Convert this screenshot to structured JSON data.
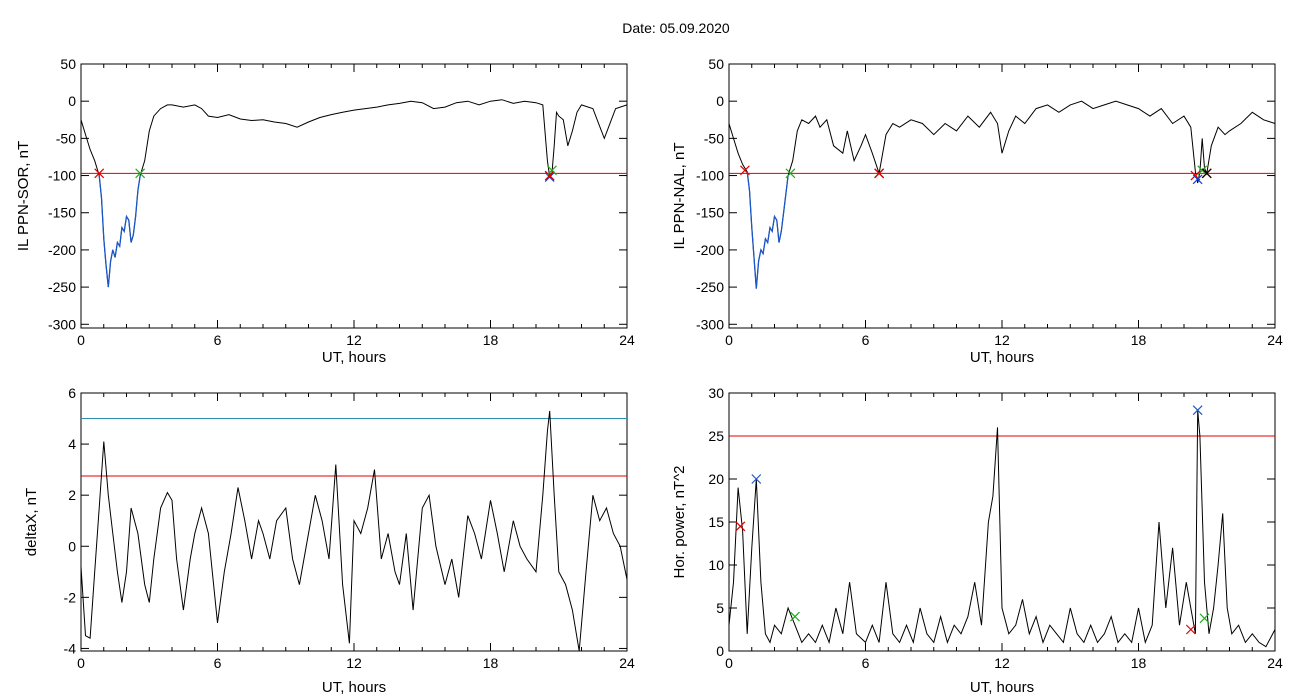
{
  "figure": {
    "title": "Date:  05.09.2020"
  },
  "chart_data": [
    {
      "id": "ppn-sor",
      "type": "line",
      "ylabel": "IL PPN-SOR, nT",
      "xlabel": "UT, hours",
      "xlim": [
        0,
        24
      ],
      "ylim": [
        -305,
        50
      ],
      "xticks": [
        "0",
        "6",
        "12",
        "18",
        "24"
      ],
      "yticks": [
        "50",
        "0",
        "-50",
        "-100",
        "-150",
        "-200",
        "-250",
        "-300"
      ],
      "threshold": {
        "value": -97,
        "color": "#e00000"
      },
      "highlight": {
        "x0": 0.8,
        "x1": 2.6,
        "color": "#1a57c8"
      },
      "series": [
        {
          "color": "#000000",
          "x": [
            0,
            0.2,
            0.4,
            0.6,
            0.8,
            0.9,
            1.0,
            1.1,
            1.2,
            1.3,
            1.4,
            1.5,
            1.6,
            1.7,
            1.8,
            1.9,
            2.0,
            2.1,
            2.2,
            2.3,
            2.4,
            2.5,
            2.6,
            2.8,
            3.0,
            3.2,
            3.5,
            3.8,
            4.0,
            4.5,
            5.0,
            5.3,
            5.6,
            6.0,
            6.5,
            7.0,
            7.5,
            8.0,
            8.5,
            9.0,
            9.5,
            10.0,
            10.5,
            11.0,
            11.5,
            12.0,
            12.5,
            13.0,
            13.5,
            14.0,
            14.5,
            15.0,
            15.5,
            16.0,
            16.5,
            17.0,
            17.5,
            18.0,
            18.5,
            19.0,
            19.5,
            20.0,
            20.3,
            20.5,
            20.6,
            20.7,
            20.8,
            20.9,
            21.0,
            21.2,
            21.4,
            21.6,
            21.8,
            22.0,
            22.5,
            23.0,
            23.5,
            24.0
          ],
          "y": [
            -25,
            -45,
            -65,
            -80,
            -100,
            -130,
            -185,
            -220,
            -250,
            -215,
            -200,
            -210,
            -190,
            -195,
            -170,
            -175,
            -155,
            -160,
            -190,
            -180,
            -155,
            -120,
            -100,
            -80,
            -40,
            -20,
            -10,
            -5,
            -5,
            -8,
            -5,
            -10,
            -20,
            -22,
            -18,
            -24,
            -26,
            -25,
            -28,
            -30,
            -35,
            -28,
            -22,
            -18,
            -15,
            -12,
            -10,
            -8,
            -5,
            -3,
            0,
            -2,
            -10,
            -8,
            -2,
            0,
            -5,
            0,
            2,
            -3,
            0,
            -2,
            -5,
            -80,
            -102,
            -98,
            -60,
            -15,
            -20,
            -25,
            -60,
            -40,
            -15,
            -5,
            -10,
            -50,
            -10,
            -5
          ]
        }
      ],
      "markers": [
        {
          "x": 0.8,
          "y": -97,
          "color": "#e00000"
        },
        {
          "x": 2.6,
          "y": -97,
          "color": "#22aa22"
        },
        {
          "x": 20.6,
          "y": -102,
          "color": "#1a3fd0"
        },
        {
          "x": 20.6,
          "y": -100,
          "color": "#e00000"
        },
        {
          "x": 20.7,
          "y": -93,
          "color": "#22aa22"
        }
      ]
    },
    {
      "id": "ppn-nal",
      "type": "line",
      "ylabel": "IL PPN-NAL, nT",
      "xlabel": "UT, hours",
      "xlim": [
        0,
        24
      ],
      "ylim": [
        -305,
        50
      ],
      "xticks": [
        "0",
        "6",
        "12",
        "18",
        "24"
      ],
      "yticks": [
        "50",
        "0",
        "-50",
        "-100",
        "-150",
        "-200",
        "-250",
        "-300"
      ],
      "threshold": {
        "value": -97,
        "color": "#e00000"
      },
      "highlight": {
        "x0": 0.7,
        "x1": 2.7,
        "color": "#1a57c8"
      },
      "series": [
        {
          "color": "#000000",
          "x": [
            0,
            0.2,
            0.4,
            0.6,
            0.8,
            0.9,
            1.0,
            1.1,
            1.2,
            1.3,
            1.4,
            1.5,
            1.6,
            1.7,
            1.8,
            1.9,
            2.0,
            2.1,
            2.2,
            2.3,
            2.4,
            2.6,
            2.8,
            3.0,
            3.2,
            3.5,
            3.8,
            4.0,
            4.3,
            4.6,
            5.0,
            5.2,
            5.5,
            5.8,
            6.0,
            6.3,
            6.6,
            6.9,
            7.2,
            7.5,
            8.0,
            8.5,
            9.0,
            9.5,
            10.0,
            10.5,
            11.0,
            11.5,
            11.8,
            12.0,
            12.3,
            12.6,
            13.0,
            13.5,
            14.0,
            14.5,
            15.0,
            15.5,
            16.0,
            16.5,
            17.0,
            17.5,
            18.0,
            18.5,
            19.0,
            19.5,
            20.0,
            20.3,
            20.5,
            20.6,
            20.7,
            20.8,
            20.9,
            21.0,
            21.2,
            21.5,
            21.8,
            22.0,
            22.5,
            23.0,
            23.5,
            24.0
          ],
          "y": [
            -30,
            -50,
            -70,
            -85,
            -95,
            -120,
            -170,
            -210,
            -252,
            -215,
            -200,
            -205,
            -185,
            -190,
            -170,
            -175,
            -155,
            -160,
            -190,
            -175,
            -150,
            -100,
            -80,
            -40,
            -25,
            -30,
            -20,
            -35,
            -25,
            -60,
            -70,
            -40,
            -80,
            -60,
            -45,
            -70,
            -97,
            -45,
            -30,
            -35,
            -25,
            -30,
            -45,
            -30,
            -40,
            -20,
            -35,
            -15,
            -30,
            -70,
            -40,
            -20,
            -30,
            -10,
            -5,
            -15,
            -5,
            0,
            -10,
            -5,
            0,
            -5,
            -10,
            -20,
            -10,
            -30,
            -20,
            -35,
            -95,
            -110,
            -95,
            -50,
            -90,
            -97,
            -60,
            -35,
            -45,
            -40,
            -30,
            -15,
            -25,
            -30
          ]
        }
      ],
      "markers": [
        {
          "x": 0.7,
          "y": -93,
          "color": "#e00000"
        },
        {
          "x": 2.7,
          "y": -97,
          "color": "#22aa22"
        },
        {
          "x": 6.6,
          "y": -97,
          "color": "#000000"
        },
        {
          "x": 6.6,
          "y": -97,
          "color": "#e00000"
        },
        {
          "x": 20.5,
          "y": -100,
          "color": "#e00000"
        },
        {
          "x": 20.6,
          "y": -105,
          "color": "#1a3fd0"
        },
        {
          "x": 20.8,
          "y": -93,
          "color": "#22aa22"
        },
        {
          "x": 21.0,
          "y": -97,
          "color": "#e00000"
        },
        {
          "x": 21.0,
          "y": -97,
          "color": "#000000"
        }
      ]
    },
    {
      "id": "deltax",
      "type": "line",
      "ylabel": "deltaX, nT",
      "xlabel": "UT, hours",
      "xlim": [
        0,
        24
      ],
      "ylim": [
        -4.1,
        6
      ],
      "xticks": [
        "0",
        "6",
        "12",
        "18",
        "24"
      ],
      "yticks": [
        "6",
        "4",
        "2",
        "0",
        "-2",
        "-4"
      ],
      "hlines": [
        {
          "value": 5.0,
          "color": "#2a8fb0"
        },
        {
          "value": 2.75,
          "color": "#e00000"
        }
      ],
      "series": [
        {
          "color": "#000000",
          "x": [
            0,
            0.2,
            0.4,
            0.6,
            0.8,
            1.0,
            1.2,
            1.4,
            1.6,
            1.8,
            2.0,
            2.2,
            2.5,
            2.8,
            3.0,
            3.2,
            3.5,
            3.8,
            4.0,
            4.2,
            4.5,
            4.8,
            5.0,
            5.3,
            5.6,
            6.0,
            6.3,
            6.6,
            6.9,
            7.2,
            7.5,
            7.8,
            8.0,
            8.3,
            8.6,
            9.0,
            9.3,
            9.6,
            10.0,
            10.3,
            10.6,
            10.9,
            11.2,
            11.5,
            11.8,
            12.0,
            12.3,
            12.6,
            12.9,
            13.2,
            13.5,
            13.8,
            14.0,
            14.3,
            14.6,
            15.0,
            15.3,
            15.6,
            16.0,
            16.3,
            16.6,
            17.0,
            17.3,
            17.6,
            18.0,
            18.3,
            18.6,
            19.0,
            19.3,
            19.6,
            20.0,
            20.3,
            20.5,
            20.6,
            20.8,
            21.0,
            21.3,
            21.6,
            21.9,
            22.2,
            22.5,
            22.8,
            23.1,
            23.4,
            23.7,
            24.0
          ],
          "y": [
            -0.8,
            -3.5,
            -3.6,
            -1.0,
            1.5,
            4.1,
            2.0,
            0.5,
            -1.0,
            -2.2,
            -1.0,
            1.5,
            0.5,
            -1.5,
            -2.2,
            -0.5,
            1.5,
            2.1,
            1.8,
            -0.5,
            -2.5,
            -0.5,
            0.5,
            1.5,
            0.5,
            -3.0,
            -1.0,
            0.5,
            2.3,
            1.0,
            -0.5,
            1.0,
            0.5,
            -0.5,
            1.0,
            1.5,
            -0.5,
            -1.5,
            0.5,
            2.0,
            1.0,
            -0.5,
            3.2,
            -1.5,
            -3.8,
            1.0,
            0.5,
            1.5,
            3.0,
            -0.5,
            0.5,
            -1.0,
            -1.5,
            0.5,
            -2.5,
            1.5,
            2.0,
            0.0,
            -1.5,
            -0.5,
            -2.0,
            1.2,
            0.5,
            -0.5,
            1.8,
            0.5,
            -1.0,
            1.0,
            0.0,
            -0.5,
            -1.0,
            2.0,
            4.5,
            5.3,
            2.0,
            -1.0,
            -1.5,
            -2.5,
            -4.1,
            -1.0,
            2.0,
            1.0,
            1.5,
            0.5,
            0.0,
            -1.3
          ]
        }
      ]
    },
    {
      "id": "hor-power",
      "type": "line",
      "ylabel": "Hor. power, nT^2",
      "xlabel": "UT, hours",
      "xlim": [
        0,
        24
      ],
      "ylim": [
        0,
        30
      ],
      "xticks": [
        "0",
        "6",
        "12",
        "18",
        "24"
      ],
      "yticks": [
        "30",
        "25",
        "20",
        "15",
        "10",
        "5",
        "0"
      ],
      "threshold": {
        "value": 25,
        "color": "#e00000"
      },
      "series": [
        {
          "color": "#000000",
          "x": [
            0,
            0.2,
            0.4,
            0.6,
            0.8,
            1.0,
            1.2,
            1.4,
            1.6,
            1.8,
            2.0,
            2.3,
            2.6,
            2.9,
            3.2,
            3.5,
            3.8,
            4.1,
            4.4,
            4.7,
            5.0,
            5.3,
            5.6,
            6.0,
            6.3,
            6.6,
            6.9,
            7.2,
            7.5,
            7.8,
            8.1,
            8.4,
            8.7,
            9.0,
            9.3,
            9.6,
            9.9,
            10.2,
            10.5,
            10.8,
            11.1,
            11.4,
            11.6,
            11.8,
            12.0,
            12.3,
            12.6,
            12.9,
            13.2,
            13.5,
            13.8,
            14.1,
            14.4,
            14.7,
            15.0,
            15.3,
            15.6,
            15.9,
            16.2,
            16.5,
            16.8,
            17.1,
            17.4,
            17.7,
            18.0,
            18.3,
            18.6,
            18.9,
            19.2,
            19.5,
            19.8,
            20.1,
            20.3,
            20.5,
            20.6,
            20.7,
            20.9,
            21.1,
            21.3,
            21.5,
            21.7,
            21.9,
            22.1,
            22.4,
            22.7,
            23.0,
            23.3,
            23.6,
            24.0
          ],
          "y": [
            3,
            8,
            19,
            14,
            2,
            12,
            20,
            8,
            2,
            1,
            3,
            2,
            5,
            3,
            1,
            2,
            1,
            3,
            1,
            5,
            2,
            8,
            2,
            1,
            3,
            1,
            8,
            2,
            1,
            3,
            1,
            5,
            2,
            1,
            4,
            1,
            3,
            2,
            4,
            8,
            3,
            15,
            18,
            26,
            5,
            2,
            3,
            6,
            2,
            4,
            1,
            3,
            2,
            1,
            5,
            2,
            1,
            3,
            1,
            2,
            4,
            1,
            2,
            1,
            5,
            1,
            3,
            15,
            5,
            12,
            3,
            8,
            5,
            2,
            28,
            25,
            8,
            2,
            5,
            10,
            16,
            5,
            2,
            3,
            1,
            2,
            1,
            0.5,
            2.5
          ]
        }
      ],
      "markers": [
        {
          "x": 0.5,
          "y": 14.5,
          "color": "#e00000"
        },
        {
          "x": 1.2,
          "y": 20,
          "color": "#1a57c8"
        },
        {
          "x": 2.9,
          "y": 4,
          "color": "#22aa22"
        },
        {
          "x": 20.3,
          "y": 2.5,
          "color": "#e00000"
        },
        {
          "x": 20.6,
          "y": 28,
          "color": "#1a57c8"
        },
        {
          "x": 20.9,
          "y": 3.8,
          "color": "#22aa22"
        }
      ]
    }
  ]
}
